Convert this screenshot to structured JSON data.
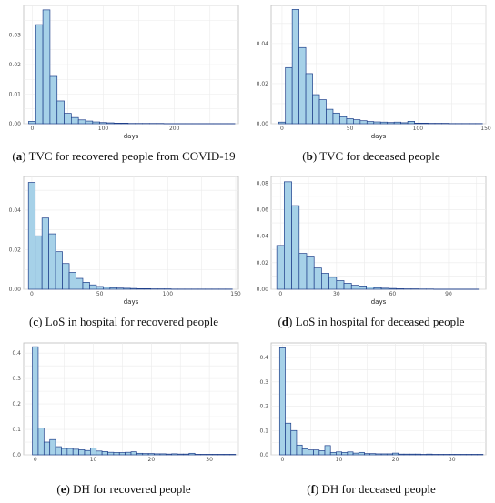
{
  "chart_data": [
    {
      "type": "bar",
      "xlabel": "days",
      "ylabel": "",
      "caption_letter": "a",
      "caption_text": "TVC for recovered people from COVID-19",
      "xlim": [
        -12,
        290
      ],
      "ylim": [
        0,
        0.04
      ],
      "xticks": [
        0,
        100,
        200
      ],
      "yticks": [
        0.0,
        0.01,
        0.02,
        0.03
      ],
      "bin_width": 10,
      "x": [
        0,
        10,
        20,
        30,
        40,
        50,
        60,
        70,
        80,
        90,
        100,
        110,
        120,
        130,
        140,
        150,
        160,
        170,
        180,
        190,
        200,
        210,
        220,
        230,
        240,
        250,
        260,
        270,
        280
      ],
      "values": [
        0.0008,
        0.0335,
        0.0385,
        0.016,
        0.0077,
        0.0035,
        0.0021,
        0.0013,
        0.0009,
        0.0006,
        0.0004,
        0.0003,
        0.0002,
        0.0002,
        0.0001,
        0.0001,
        0.0001,
        0.0001,
        0.0001,
        5e-05,
        5e-05,
        5e-05,
        5e-05,
        5e-05,
        5e-05,
        5e-05,
        5e-05,
        5e-05,
        5e-05
      ]
    },
    {
      "type": "bar",
      "xlabel": "days",
      "ylabel": "",
      "caption_letter": "b",
      "caption_text": "TVC for deceased people",
      "xlim": [
        -8,
        150
      ],
      "ylim": [
        0,
        0.059
      ],
      "xticks": [
        0,
        50,
        100,
        150
      ],
      "yticks": [
        0.0,
        0.02,
        0.04
      ],
      "bin_width": 5,
      "x": [
        0,
        5,
        10,
        15,
        20,
        25,
        30,
        35,
        40,
        45,
        50,
        55,
        60,
        65,
        70,
        75,
        80,
        85,
        90,
        95,
        100,
        105,
        110,
        115,
        120,
        125,
        130,
        135,
        140,
        145
      ],
      "values": [
        0.0008,
        0.028,
        0.057,
        0.038,
        0.025,
        0.0145,
        0.012,
        0.0072,
        0.0053,
        0.0035,
        0.0025,
        0.002,
        0.0015,
        0.0011,
        0.0009,
        0.0008,
        0.0006,
        0.0008,
        0.0005,
        0.0012,
        0.0003,
        0.0003,
        0.0002,
        0.0002,
        0.0002,
        0.0001,
        0.0001,
        0.0001,
        0.0001,
        0.0001
      ]
    },
    {
      "type": "bar",
      "xlabel": "days",
      "ylabel": "",
      "caption_letter": "c",
      "caption_text": "LoS in hospital for recovered people",
      "xlim": [
        -6,
        152
      ],
      "ylim": [
        0,
        0.057
      ],
      "xticks": [
        0,
        50,
        100,
        150
      ],
      "yticks": [
        0.0,
        0.02,
        0.04
      ],
      "bin_width": 5,
      "x": [
        0,
        5,
        10,
        15,
        20,
        25,
        30,
        35,
        40,
        45,
        50,
        55,
        60,
        65,
        70,
        75,
        80,
        85,
        90,
        95,
        100,
        105,
        110,
        115,
        120,
        125,
        130,
        135,
        140,
        145
      ],
      "values": [
        0.054,
        0.027,
        0.036,
        0.028,
        0.019,
        0.013,
        0.0085,
        0.0055,
        0.0035,
        0.0022,
        0.0014,
        0.001,
        0.0008,
        0.0006,
        0.0005,
        0.0004,
        0.0003,
        0.0003,
        0.0002,
        0.0002,
        0.0002,
        0.0001,
        0.0001,
        0.0001,
        0.0001,
        0.0001,
        0.0001,
        0.0001,
        0.0001,
        0.0001
      ]
    },
    {
      "type": "bar",
      "xlabel": "days",
      "ylabel": "",
      "caption_letter": "d",
      "caption_text": "LoS in hospital for deceased people",
      "xlim": [
        -5,
        110
      ],
      "ylim": [
        0,
        0.085
      ],
      "xticks": [
        0,
        30,
        60,
        90
      ],
      "yticks": [
        0.0,
        0.02,
        0.04,
        0.06,
        0.08
      ],
      "bin_width": 4,
      "x": [
        0,
        4,
        8,
        12,
        16,
        20,
        24,
        28,
        32,
        36,
        40,
        44,
        48,
        52,
        56,
        60,
        64,
        68,
        72,
        76,
        80,
        84,
        88,
        92,
        96,
        100,
        104
      ],
      "values": [
        0.033,
        0.081,
        0.063,
        0.027,
        0.025,
        0.016,
        0.012,
        0.009,
        0.0065,
        0.0045,
        0.003,
        0.0025,
        0.0017,
        0.0012,
        0.0008,
        0.0006,
        0.0004,
        0.0003,
        0.0003,
        0.0002,
        0.0002,
        0.0001,
        0.0001,
        0.0001,
        0.0001,
        0.0001,
        0.0001
      ]
    },
    {
      "type": "bar",
      "xlabel": "",
      "ylabel": "",
      "caption_letter": "e",
      "caption_text": "DH for recovered people",
      "xlim": [
        -2,
        35
      ],
      "ylim": [
        0,
        0.44
      ],
      "xticks": [
        0,
        10,
        20,
        30
      ],
      "yticks": [
        0.0,
        0.1,
        0.2,
        0.3,
        0.4
      ],
      "bin_width": 1,
      "x": [
        0,
        1,
        2,
        3,
        4,
        5,
        6,
        7,
        8,
        9,
        10,
        11,
        12,
        13,
        14,
        15,
        16,
        17,
        18,
        19,
        20,
        21,
        22,
        23,
        24,
        25,
        26,
        27,
        28,
        29,
        30,
        31,
        32,
        33,
        34
      ],
      "values": [
        0.425,
        0.105,
        0.05,
        0.06,
        0.032,
        0.025,
        0.025,
        0.022,
        0.02,
        0.017,
        0.027,
        0.015,
        0.013,
        0.01,
        0.009,
        0.009,
        0.01,
        0.012,
        0.006,
        0.005,
        0.005,
        0.004,
        0.004,
        0.003,
        0.004,
        0.003,
        0.003,
        0.006,
        0.002,
        0.002,
        0.002,
        0.002,
        0.002,
        0.002,
        0.002
      ]
    },
    {
      "type": "bar",
      "xlabel": "",
      "ylabel": "",
      "caption_letter": "f",
      "caption_text": "DH for deceased people",
      "xlim": [
        -2,
        36
      ],
      "ylim": [
        0,
        0.46
      ],
      "xticks": [
        0,
        10,
        20,
        30
      ],
      "yticks": [
        0.0,
        0.1,
        0.2,
        0.3,
        0.4
      ],
      "bin_width": 1,
      "x": [
        0,
        1,
        2,
        3,
        4,
        5,
        6,
        7,
        8,
        9,
        10,
        11,
        12,
        13,
        14,
        15,
        16,
        17,
        18,
        19,
        20,
        21,
        22,
        23,
        24,
        25,
        26,
        27,
        28,
        29,
        30,
        31,
        32,
        33,
        34,
        35
      ],
      "values": [
        0.44,
        0.13,
        0.1,
        0.04,
        0.025,
        0.02,
        0.02,
        0.017,
        0.038,
        0.01,
        0.012,
        0.01,
        0.012,
        0.007,
        0.01,
        0.005,
        0.005,
        0.004,
        0.004,
        0.004,
        0.007,
        0.003,
        0.003,
        0.003,
        0.003,
        0.002,
        0.003,
        0.002,
        0.002,
        0.002,
        0.002,
        0.002,
        0.002,
        0.002,
        0.002,
        0.002
      ]
    }
  ],
  "style": {
    "bar_fill": "#a6d1e8",
    "bar_stroke": "#1f3f8a",
    "grid_color": "#ebebeb",
    "frame_color": "#bdbdbd"
  }
}
